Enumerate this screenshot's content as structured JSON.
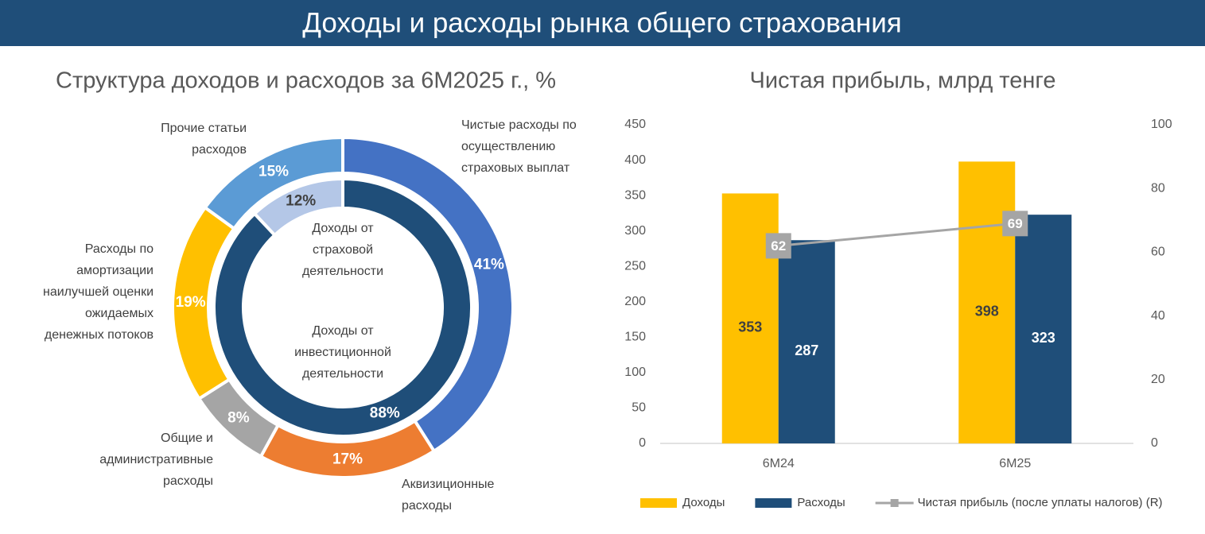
{
  "header": {
    "title": "Доходы и расходы рынка общего страхования"
  },
  "chart_data": [
    {
      "type": "donut",
      "title": "Структура доходов и расходов за 6М2025 г., %",
      "rings": [
        {
          "categories": [
            "Доходы от страховой деятельности",
            "Доходы от инвестиционной деятельности"
          ],
          "values": [
            88,
            12
          ],
          "value_labels": [
            "88%",
            "12%"
          ],
          "colors": [
            "#1f4e79",
            "#b4c7e7"
          ]
        },
        {
          "categories": [
            "Чистые расходы по осуществлению страховых выплат",
            "Аквизиционные расходы",
            "Общие и административные расходы",
            "Расходы по амортизации наилучшей оценки ожидаемых денежных потоков",
            "Прочие статьи расходов"
          ],
          "values": [
            41,
            17,
            8,
            19,
            15
          ],
          "value_labels": [
            "41%",
            "17%",
            "8%",
            "19%",
            "15%"
          ],
          "colors": [
            "#4472c4",
            "#ed7d31",
            "#a5a5a5",
            "#ffc000",
            "#5b9bd5"
          ]
        }
      ]
    },
    {
      "type": "bar",
      "title": "Чистая прибыль, млрд тенге",
      "categories": [
        "6М24",
        "6М25"
      ],
      "series": [
        {
          "name": "Доходы",
          "color": "#ffc000",
          "values": [
            353,
            398
          ]
        },
        {
          "name": "Расходы",
          "color": "#1f4e79",
          "values": [
            287,
            323
          ]
        },
        {
          "name": "Чистая прибыль (после уплаты налогов) (R)",
          "color": "#a5a5a5",
          "values": [
            62,
            69
          ],
          "axis": "y2",
          "type": "line"
        }
      ],
      "ylim": [
        0,
        450
      ],
      "yticks": [
        0,
        50,
        100,
        150,
        200,
        250,
        300,
        350,
        400,
        450
      ],
      "y2lim": [
        0,
        100
      ],
      "y2ticks": [
        0,
        20,
        40,
        60,
        80,
        100
      ],
      "legend": "bottom"
    }
  ]
}
